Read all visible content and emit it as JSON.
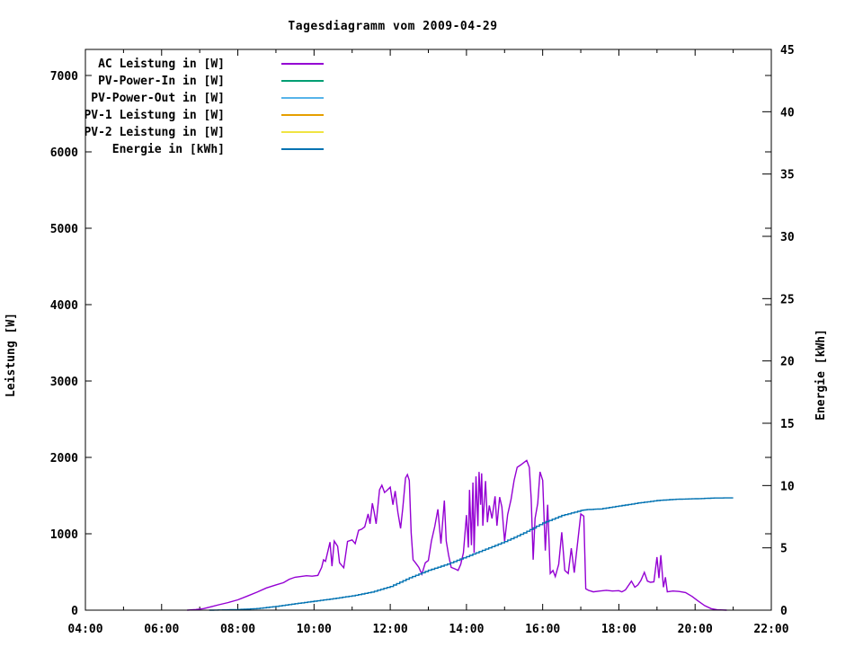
{
  "title": "Tagesdiagramm vom 2009-04-29",
  "chart_data": {
    "type": "line",
    "background": "#ffffff",
    "border_color": "#000000",
    "grid": false,
    "legend_position": "top-left-inside",
    "x_axis": {
      "kind": "time",
      "min_hour": 4,
      "max_hour": 22,
      "major_ticks": [
        {
          "hour": 4,
          "label": "04:00"
        },
        {
          "hour": 6,
          "label": "06:00"
        },
        {
          "hour": 8,
          "label": "08:00"
        },
        {
          "hour": 10,
          "label": "10:00"
        },
        {
          "hour": 12,
          "label": "12:00"
        },
        {
          "hour": 14,
          "label": "14:00"
        },
        {
          "hour": 16,
          "label": "16:00"
        },
        {
          "hour": 18,
          "label": "18:00"
        },
        {
          "hour": 20,
          "label": "20:00"
        },
        {
          "hour": 22,
          "label": "22:00"
        }
      ],
      "minor_tick_hours": [
        5,
        7,
        9,
        11,
        13,
        15,
        17,
        19,
        21
      ]
    },
    "y_left": {
      "label": "Leistung [W]",
      "min": 0,
      "max": 7341,
      "ticks": [
        {
          "value": 0,
          "label": "0"
        },
        {
          "value": 1000,
          "label": "1000"
        },
        {
          "value": 2000,
          "label": "2000"
        },
        {
          "value": 3000,
          "label": "3000"
        },
        {
          "value": 4000,
          "label": "4000"
        },
        {
          "value": 5000,
          "label": "5000"
        },
        {
          "value": 6000,
          "label": "6000"
        },
        {
          "value": 7000,
          "label": "7000"
        }
      ]
    },
    "y_right": {
      "label": "Energie [kWh]",
      "min": 0,
      "max": 45,
      "ticks": [
        {
          "value": 0,
          "label": "0"
        },
        {
          "value": 5,
          "label": "5"
        },
        {
          "value": 10,
          "label": "10"
        },
        {
          "value": 15,
          "label": "15"
        },
        {
          "value": 20,
          "label": "20"
        },
        {
          "value": 25,
          "label": "25"
        },
        {
          "value": 30,
          "label": "30"
        },
        {
          "value": 35,
          "label": "35"
        },
        {
          "value": 40,
          "label": "40"
        },
        {
          "value": 45,
          "label": "45"
        }
      ]
    },
    "legend": [
      {
        "name": "AC Leistung in [W]",
        "color": "#9400D3"
      },
      {
        "name": "PV-Power-In in [W]",
        "color": "#009E73"
      },
      {
        "name": "PV-Power-Out in [W]",
        "color": "#56B4E9"
      },
      {
        "name": "PV-1 Leistung in [W]",
        "color": "#E69F00"
      },
      {
        "name": "PV-2 Leistung in [W]",
        "color": "#F0E442"
      },
      {
        "name": "Energie in [kWh]",
        "color": "#0072B2"
      }
    ],
    "series": [
      {
        "name": "AC Leistung in [W]",
        "color": "#9400D3",
        "axis": "left",
        "style": "line",
        "points": [
          [
            6.67,
            0
          ],
          [
            6.9,
            8
          ],
          [
            7.1,
            20
          ],
          [
            7.3,
            45
          ],
          [
            7.5,
            70
          ],
          [
            7.75,
            100
          ],
          [
            8.0,
            135
          ],
          [
            8.25,
            185
          ],
          [
            8.5,
            235
          ],
          [
            8.75,
            290
          ],
          [
            9.0,
            330
          ],
          [
            9.2,
            360
          ],
          [
            9.35,
            405
          ],
          [
            9.5,
            430
          ],
          [
            9.65,
            440
          ],
          [
            9.8,
            450
          ],
          [
            9.95,
            445
          ],
          [
            10.1,
            455
          ],
          [
            10.2,
            560
          ],
          [
            10.25,
            660
          ],
          [
            10.3,
            640
          ],
          [
            10.42,
            890
          ],
          [
            10.47,
            575
          ],
          [
            10.53,
            905
          ],
          [
            10.62,
            835
          ],
          [
            10.67,
            620
          ],
          [
            10.78,
            555
          ],
          [
            10.88,
            900
          ],
          [
            11.0,
            920
          ],
          [
            11.08,
            870
          ],
          [
            11.17,
            1045
          ],
          [
            11.25,
            1060
          ],
          [
            11.33,
            1090
          ],
          [
            11.42,
            1260
          ],
          [
            11.47,
            1130
          ],
          [
            11.53,
            1400
          ],
          [
            11.58,
            1280
          ],
          [
            11.63,
            1130
          ],
          [
            11.72,
            1575
          ],
          [
            11.78,
            1635
          ],
          [
            11.85,
            1540
          ],
          [
            11.92,
            1570
          ],
          [
            12.0,
            1610
          ],
          [
            12.07,
            1380
          ],
          [
            12.13,
            1560
          ],
          [
            12.2,
            1280
          ],
          [
            12.27,
            1070
          ],
          [
            12.33,
            1340
          ],
          [
            12.4,
            1730
          ],
          [
            12.45,
            1775
          ],
          [
            12.5,
            1700
          ],
          [
            12.55,
            1010
          ],
          [
            12.6,
            660
          ],
          [
            12.67,
            615
          ],
          [
            12.75,
            560
          ],
          [
            12.83,
            470
          ],
          [
            12.92,
            620
          ],
          [
            13.0,
            650
          ],
          [
            13.08,
            905
          ],
          [
            13.17,
            1100
          ],
          [
            13.25,
            1320
          ],
          [
            13.33,
            870
          ],
          [
            13.42,
            1435
          ],
          [
            13.47,
            905
          ],
          [
            13.53,
            720
          ],
          [
            13.6,
            560
          ],
          [
            13.7,
            540
          ],
          [
            13.78,
            520
          ],
          [
            13.85,
            600
          ],
          [
            13.92,
            750
          ],
          [
            14.0,
            1245
          ],
          [
            14.05,
            820
          ],
          [
            14.08,
            1575
          ],
          [
            14.13,
            850
          ],
          [
            14.17,
            1670
          ],
          [
            14.2,
            750
          ],
          [
            14.25,
            1750
          ],
          [
            14.3,
            1100
          ],
          [
            14.33,
            1810
          ],
          [
            14.37,
            1380
          ],
          [
            14.4,
            1790
          ],
          [
            14.43,
            1105
          ],
          [
            14.5,
            1690
          ],
          [
            14.55,
            1150
          ],
          [
            14.6,
            1370
          ],
          [
            14.67,
            1200
          ],
          [
            14.75,
            1490
          ],
          [
            14.8,
            1105
          ],
          [
            14.87,
            1480
          ],
          [
            14.93,
            1350
          ],
          [
            15.0,
            900
          ],
          [
            15.08,
            1250
          ],
          [
            15.17,
            1450
          ],
          [
            15.25,
            1700
          ],
          [
            15.33,
            1870
          ],
          [
            15.42,
            1900
          ],
          [
            15.5,
            1930
          ],
          [
            15.58,
            1960
          ],
          [
            15.65,
            1870
          ],
          [
            15.7,
            1460
          ],
          [
            15.75,
            660
          ],
          [
            15.8,
            1200
          ],
          [
            15.87,
            1400
          ],
          [
            15.93,
            1810
          ],
          [
            16.0,
            1700
          ],
          [
            16.07,
            780
          ],
          [
            16.13,
            1380
          ],
          [
            16.2,
            480
          ],
          [
            16.27,
            520
          ],
          [
            16.33,
            440
          ],
          [
            16.42,
            600
          ],
          [
            16.5,
            1020
          ],
          [
            16.58,
            520
          ],
          [
            16.67,
            480
          ],
          [
            16.75,
            810
          ],
          [
            16.83,
            490
          ],
          [
            16.92,
            900
          ],
          [
            17.0,
            1260
          ],
          [
            17.08,
            1230
          ],
          [
            17.13,
            280
          ],
          [
            17.2,
            260
          ],
          [
            17.33,
            240
          ],
          [
            17.5,
            250
          ],
          [
            17.67,
            260
          ],
          [
            17.83,
            250
          ],
          [
            18.0,
            255
          ],
          [
            18.08,
            240
          ],
          [
            18.17,
            265
          ],
          [
            18.33,
            380
          ],
          [
            18.42,
            300
          ],
          [
            18.5,
            330
          ],
          [
            18.58,
            390
          ],
          [
            18.67,
            495
          ],
          [
            18.75,
            380
          ],
          [
            18.83,
            365
          ],
          [
            18.92,
            370
          ],
          [
            19.0,
            695
          ],
          [
            19.05,
            420
          ],
          [
            19.1,
            720
          ],
          [
            19.17,
            300
          ],
          [
            19.22,
            430
          ],
          [
            19.27,
            240
          ],
          [
            19.42,
            250
          ],
          [
            19.58,
            245
          ],
          [
            19.75,
            230
          ],
          [
            19.92,
            180
          ],
          [
            20.08,
            120
          ],
          [
            20.25,
            60
          ],
          [
            20.42,
            20
          ],
          [
            20.58,
            5
          ],
          [
            20.83,
            0
          ]
        ]
      },
      {
        "name": "Energie in [kWh]",
        "color": "#0072B2",
        "axis": "right",
        "style": "steps",
        "points": [
          [
            7.25,
            0
          ],
          [
            7.6,
            0.02
          ],
          [
            8.0,
            0.05
          ],
          [
            8.5,
            0.13
          ],
          [
            9.0,
            0.3
          ],
          [
            9.5,
            0.52
          ],
          [
            10.0,
            0.72
          ],
          [
            10.5,
            0.92
          ],
          [
            11.0,
            1.15
          ],
          [
            11.5,
            1.45
          ],
          [
            12.0,
            1.9
          ],
          [
            12.5,
            2.6
          ],
          [
            13.0,
            3.2
          ],
          [
            13.5,
            3.7
          ],
          [
            14.0,
            4.3
          ],
          [
            14.5,
            4.9
          ],
          [
            15.0,
            5.5
          ],
          [
            15.5,
            6.2
          ],
          [
            16.0,
            7.0
          ],
          [
            16.5,
            7.6
          ],
          [
            17.0,
            8.0
          ],
          [
            17.17,
            8.07
          ],
          [
            17.5,
            8.12
          ],
          [
            18.0,
            8.36
          ],
          [
            18.5,
            8.6
          ],
          [
            19.0,
            8.8
          ],
          [
            19.5,
            8.9
          ],
          [
            20.0,
            8.94
          ],
          [
            20.5,
            9.0
          ],
          [
            21.0,
            9.01
          ]
        ]
      }
    ]
  }
}
